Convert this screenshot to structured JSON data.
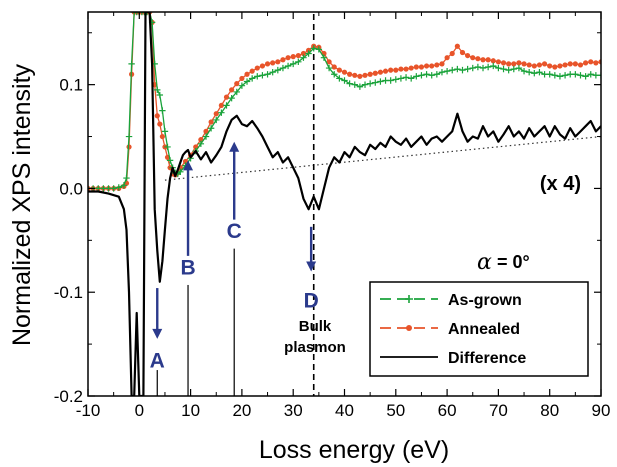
{
  "chart_data": {
    "type": "line",
    "xlabel": "Loss energy (eV)",
    "ylabel": "Normalized XPS intensity",
    "xlim": [
      -10,
      90
    ],
    "ylim": [
      -0.2,
      0.17
    ],
    "x_ticks": [
      -10,
      0,
      10,
      20,
      30,
      40,
      50,
      60,
      70,
      80,
      90
    ],
    "x_tick_labels": [
      "-10",
      "0",
      "10",
      "20",
      "30",
      "40",
      "50",
      "60",
      "70",
      "80",
      "90"
    ],
    "y_ticks": [
      -0.2,
      -0.1,
      0.0,
      0.1
    ],
    "y_tick_labels": [
      "-0.2",
      "-0.1",
      "0.0",
      "0.1"
    ],
    "grid": false,
    "legend_position": "bottom-right",
    "scale_note": "(x 4)",
    "condition": {
      "symbol": "α",
      "value": "= 0°"
    },
    "series": [
      {
        "name": "As-grown",
        "color": "#1aa33b",
        "marker": "plus",
        "x": [
          -10,
          -9,
          -8,
          -7,
          -6,
          -5,
          -4,
          -3,
          -2.5,
          -2,
          -1.5,
          -1,
          -0.5,
          0,
          0.5,
          1,
          1.5,
          2,
          2.5,
          3,
          3.5,
          4,
          4.5,
          5,
          5.5,
          6,
          6.5,
          7,
          7.5,
          8,
          9,
          10,
          11,
          12,
          13,
          14,
          15,
          16,
          17,
          18,
          19,
          20,
          21,
          22,
          23,
          24,
          25,
          26,
          27,
          28,
          29,
          30,
          31,
          32,
          33,
          34,
          35,
          36,
          37,
          38,
          39,
          40,
          41,
          42,
          43,
          44,
          45,
          46,
          47,
          48,
          49,
          50,
          51,
          52,
          53,
          54,
          55,
          56,
          57,
          58,
          59,
          60,
          61,
          62,
          63,
          64,
          65,
          66,
          67,
          68,
          69,
          70,
          71,
          72,
          73,
          74,
          75,
          76,
          77,
          78,
          79,
          80,
          81,
          82,
          83,
          84,
          85,
          86,
          87,
          88,
          89,
          90
        ],
        "y": [
          0.0,
          0.0,
          0.0,
          0.0,
          0.0,
          0.0,
          0.001,
          0.003,
          0.01,
          0.05,
          0.12,
          0.17,
          0.17,
          0.17,
          0.17,
          0.17,
          0.17,
          0.17,
          0.16,
          0.12,
          0.095,
          0.09,
          0.075,
          0.055,
          0.04,
          0.027,
          0.02,
          0.015,
          0.014,
          0.016,
          0.022,
          0.029,
          0.036,
          0.043,
          0.05,
          0.058,
          0.066,
          0.073,
          0.08,
          0.087,
          0.093,
          0.099,
          0.103,
          0.106,
          0.108,
          0.109,
          0.11,
          0.112,
          0.114,
          0.116,
          0.118,
          0.12,
          0.122,
          0.126,
          0.13,
          0.135,
          0.134,
          0.126,
          0.116,
          0.11,
          0.106,
          0.104,
          0.101,
          0.1,
          0.098,
          0.1,
          0.101,
          0.102,
          0.103,
          0.104,
          0.104,
          0.105,
          0.106,
          0.107,
          0.106,
          0.108,
          0.109,
          0.11,
          0.109,
          0.11,
          0.112,
          0.113,
          0.114,
          0.115,
          0.114,
          0.115,
          0.116,
          0.117,
          0.116,
          0.117,
          0.118,
          0.116,
          0.115,
          0.114,
          0.115,
          0.116,
          0.113,
          0.112,
          0.111,
          0.112,
          0.11,
          0.11,
          0.109,
          0.108,
          0.109,
          0.11,
          0.11,
          0.109,
          0.108,
          0.11,
          0.109,
          0.109
        ]
      },
      {
        "name": "Annealed",
        "color": "#e8542a",
        "marker": "dot",
        "x": [
          -10,
          -9,
          -8,
          -7,
          -6,
          -5,
          -4,
          -3,
          -2.5,
          -2,
          -1.5,
          -1,
          -0.5,
          0,
          0.5,
          1,
          1.5,
          2,
          2.5,
          3,
          3.5,
          4,
          4.5,
          5,
          5.5,
          6,
          6.5,
          7,
          7.5,
          8,
          9,
          10,
          11,
          12,
          13,
          14,
          15,
          16,
          17,
          18,
          19,
          20,
          21,
          22,
          23,
          24,
          25,
          26,
          27,
          28,
          29,
          30,
          31,
          32,
          33,
          34,
          35,
          36,
          37,
          38,
          39,
          40,
          41,
          42,
          43,
          44,
          45,
          46,
          47,
          48,
          49,
          50,
          51,
          52,
          53,
          54,
          55,
          56,
          57,
          58,
          59,
          60,
          61,
          62,
          63,
          64,
          65,
          66,
          67,
          68,
          69,
          70,
          71,
          72,
          73,
          74,
          75,
          76,
          77,
          78,
          79,
          80,
          81,
          82,
          83,
          84,
          85,
          86,
          87,
          88,
          89,
          90
        ],
        "y": [
          0.0,
          0.0,
          0.0,
          0.0,
          0.0,
          0.0,
          0.0,
          0.002,
          0.005,
          0.04,
          0.11,
          0.17,
          0.17,
          0.17,
          0.17,
          0.17,
          0.17,
          0.17,
          0.16,
          0.1,
          0.07,
          0.062,
          0.05,
          0.04,
          0.03,
          0.02,
          0.014,
          0.013,
          0.015,
          0.02,
          0.026,
          0.032,
          0.04,
          0.047,
          0.055,
          0.064,
          0.072,
          0.08,
          0.088,
          0.095,
          0.101,
          0.106,
          0.11,
          0.113,
          0.116,
          0.118,
          0.12,
          0.121,
          0.122,
          0.124,
          0.126,
          0.127,
          0.128,
          0.13,
          0.133,
          0.137,
          0.136,
          0.13,
          0.122,
          0.117,
          0.114,
          0.112,
          0.11,
          0.109,
          0.108,
          0.109,
          0.11,
          0.111,
          0.112,
          0.113,
          0.114,
          0.114,
          0.115,
          0.115,
          0.116,
          0.117,
          0.117,
          0.118,
          0.118,
          0.119,
          0.12,
          0.126,
          0.13,
          0.137,
          0.131,
          0.128,
          0.126,
          0.125,
          0.124,
          0.124,
          0.123,
          0.122,
          0.121,
          0.12,
          0.12,
          0.121,
          0.12,
          0.119,
          0.118,
          0.119,
          0.12,
          0.118,
          0.117,
          0.118,
          0.119,
          0.12,
          0.12,
          0.119,
          0.121,
          0.122,
          0.121,
          0.122
        ]
      },
      {
        "name": "Difference",
        "color": "#000000",
        "marker": "none",
        "x": [
          -10,
          -8,
          -6,
          -4,
          -3,
          -2.5,
          -2,
          -1.5,
          -1,
          -0.5,
          0,
          0.4,
          0.8,
          1.2,
          1.6,
          2,
          2.5,
          3,
          3.5,
          4,
          4.5,
          5,
          5.5,
          6,
          6.5,
          7,
          7.5,
          8,
          8.5,
          9,
          9.5,
          10,
          11,
          12,
          13,
          14,
          15,
          16,
          17,
          18,
          19,
          20,
          21,
          22,
          23,
          24,
          25,
          26,
          27,
          28,
          29,
          30,
          31,
          32,
          33,
          34,
          35,
          36,
          37,
          38,
          39,
          40,
          41,
          42,
          43,
          44,
          45,
          46,
          47,
          48,
          49,
          50,
          51,
          52,
          53,
          54,
          55,
          56,
          57,
          58,
          59,
          60,
          61,
          62,
          63,
          64,
          65,
          66,
          67,
          68,
          69,
          70,
          71,
          72,
          73,
          74,
          75,
          76,
          77,
          78,
          79,
          80,
          81,
          82,
          83,
          84,
          85,
          86,
          87,
          88,
          89,
          90
        ],
        "y": [
          -0.003,
          -0.003,
          -0.005,
          -0.008,
          -0.02,
          -0.04,
          -0.1,
          -0.2,
          -0.2,
          -0.12,
          -0.2,
          -0.2,
          -0.2,
          0.17,
          0.17,
          0.17,
          0.12,
          -0.02,
          -0.06,
          -0.09,
          -0.07,
          -0.04,
          -0.01,
          0.01,
          0.02,
          0.012,
          0.018,
          0.025,
          0.032,
          0.035,
          0.037,
          0.03,
          0.036,
          0.028,
          0.035,
          0.025,
          0.032,
          0.04,
          0.055,
          0.066,
          0.07,
          0.062,
          0.06,
          0.065,
          0.058,
          0.05,
          0.04,
          0.03,
          0.035,
          0.025,
          0.03,
          0.02,
          0.01,
          -0.01,
          -0.02,
          -0.008,
          -0.02,
          0.0,
          0.02,
          0.03,
          0.025,
          0.035,
          0.03,
          0.04,
          0.035,
          0.032,
          0.042,
          0.038,
          0.044,
          0.04,
          0.05,
          0.045,
          0.042,
          0.048,
          0.04,
          0.045,
          0.05,
          0.042,
          0.048,
          0.05,
          0.045,
          0.05,
          0.055,
          0.072,
          0.055,
          0.045,
          0.05,
          0.048,
          0.06,
          0.05,
          0.055,
          0.045,
          0.052,
          0.06,
          0.05,
          0.055,
          0.048,
          0.058,
          0.05,
          0.055,
          0.06,
          0.05,
          0.06,
          0.052,
          0.048,
          0.058,
          0.05,
          0.055,
          0.06,
          0.065,
          0.055,
          0.06
        ]
      }
    ],
    "baseline": {
      "x": [
        5,
        90
      ],
      "y": [
        0.008,
        0.05
      ]
    },
    "annotations": [
      {
        "label": "A",
        "x": 3.5,
        "line_y": -0.2,
        "tail_y": -0.096,
        "head_y": -0.145,
        "label_y": -0.165,
        "direction": "down"
      },
      {
        "label": "B",
        "x": 9.5,
        "line_y": -0.2,
        "tail_y": -0.065,
        "head_y": 0.027,
        "label_y": -0.075,
        "direction": "up"
      },
      {
        "label": "C",
        "x": 18.5,
        "line_y": -0.2,
        "tail_y": -0.03,
        "head_y": 0.045,
        "label_y": -0.04,
        "direction": "up"
      },
      {
        "label": "D",
        "x": 33.5,
        "line_y": -0.2,
        "tail_y": -0.037,
        "head_y": -0.08,
        "label_y": -0.107,
        "direction": "down"
      }
    ],
    "bulk_plasmon": {
      "x": 34,
      "line_label_1": "Bulk",
      "line_label_2": "plasmon"
    }
  }
}
